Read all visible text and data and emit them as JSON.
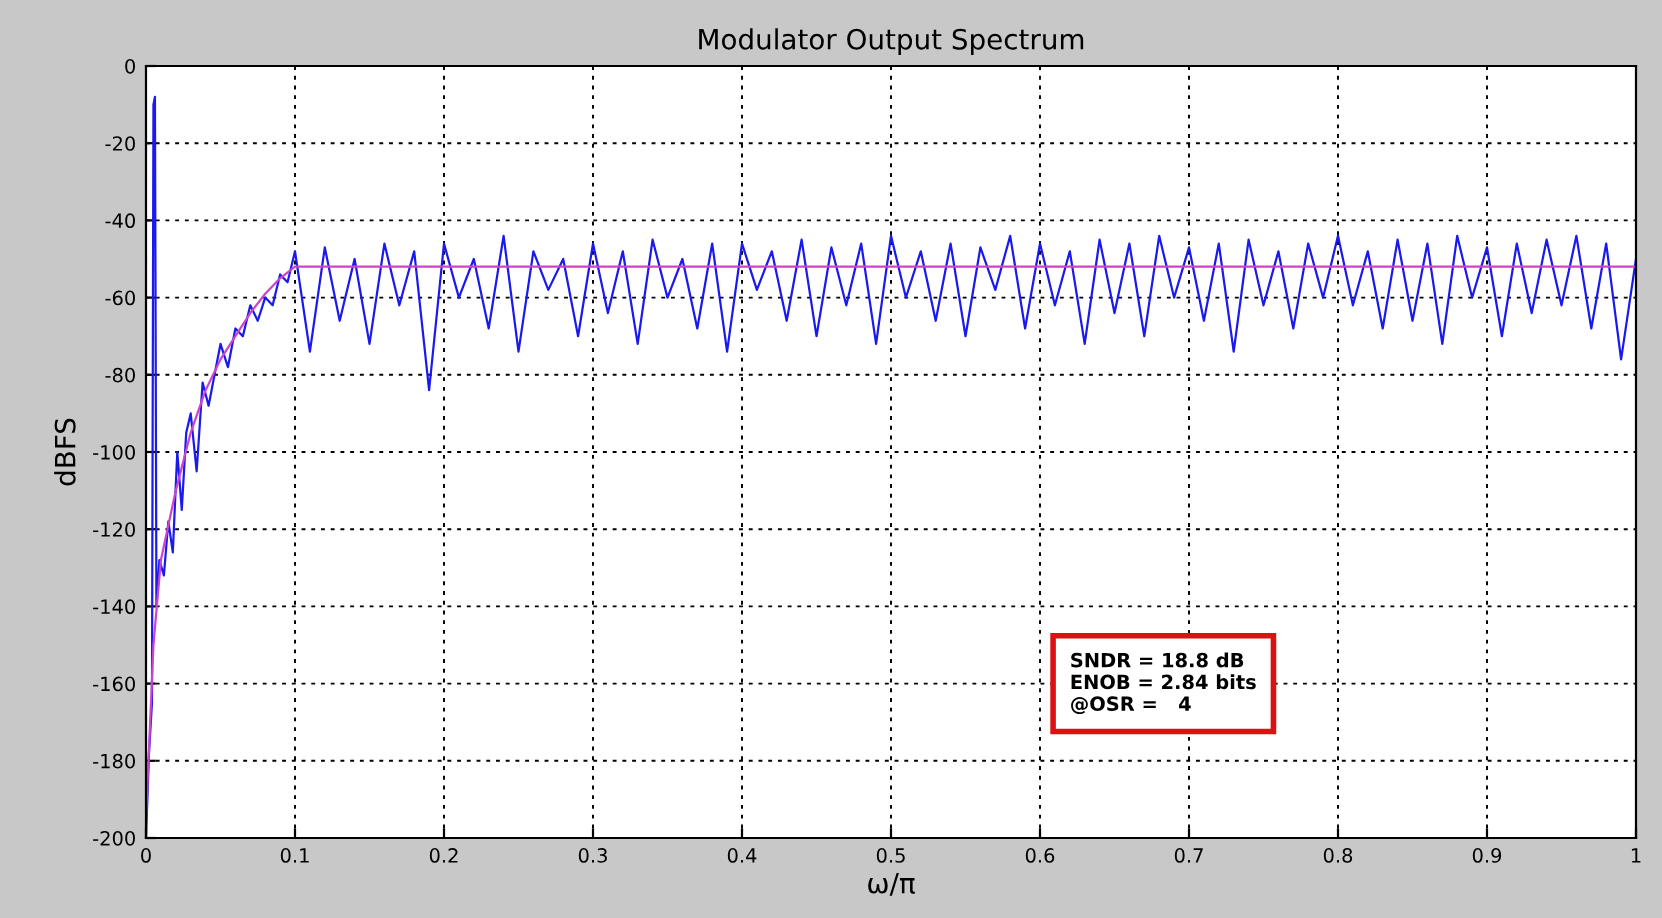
{
  "chart_data": {
    "type": "line",
    "title": "Modulator Output Spectrum",
    "xlabel": "ω/π",
    "ylabel": "dBFS",
    "series": [
      {
        "color": "#1a1aee",
        "x": [
          0,
          0.002,
          0.004,
          0.005,
          0.006,
          0.007,
          0.009,
          0.012,
          0.015,
          0.018,
          0.021,
          0.024,
          0.027,
          0.03,
          0.034,
          0.038,
          0.042,
          0.046,
          0.05,
          0.055,
          0.06,
          0.065,
          0.07,
          0.075,
          0.08,
          0.085,
          0.09,
          0.095,
          0.1,
          0.11,
          0.12,
          0.13,
          0.14,
          0.15,
          0.16,
          0.17,
          0.18,
          0.19,
          0.2,
          0.21,
          0.22,
          0.23,
          0.24,
          0.25,
          0.26,
          0.27,
          0.28,
          0.29,
          0.3,
          0.31,
          0.32,
          0.33,
          0.34,
          0.35,
          0.36,
          0.37,
          0.38,
          0.39,
          0.4,
          0.41,
          0.42,
          0.43,
          0.44,
          0.45,
          0.46,
          0.47,
          0.48,
          0.49,
          0.5,
          0.51,
          0.52,
          0.53,
          0.54,
          0.55,
          0.56,
          0.57,
          0.58,
          0.59,
          0.6,
          0.61,
          0.62,
          0.63,
          0.64,
          0.65,
          0.66,
          0.67,
          0.68,
          0.69,
          0.7,
          0.71,
          0.72,
          0.73,
          0.74,
          0.75,
          0.76,
          0.77,
          0.78,
          0.79,
          0.8,
          0.81,
          0.82,
          0.83,
          0.84,
          0.85,
          0.86,
          0.87,
          0.88,
          0.89,
          0.9,
          0.91,
          0.92,
          0.93,
          0.94,
          0.95,
          0.96,
          0.97,
          0.98,
          0.99,
          1
        ],
        "values": [
          -200,
          -178,
          -165,
          -10,
          -8,
          -140,
          -128,
          -132,
          -118,
          -126,
          -100,
          -115,
          -95,
          -90,
          -105,
          -82,
          -88,
          -80,
          -72,
          -78,
          -68,
          -70,
          -62,
          -66,
          -60,
          -62,
          -54,
          -56,
          -48,
          -74,
          -47,
          -66,
          -50,
          -72,
          -46,
          -62,
          -48,
          -84,
          -46,
          -60,
          -50,
          -68,
          -44,
          -74,
          -48,
          -58,
          -50,
          -70,
          -46,
          -64,
          -48,
          -72,
          -45,
          -60,
          -50,
          -68,
          -46,
          -74,
          -46,
          -58,
          -48,
          -66,
          -45,
          -70,
          -47,
          -62,
          -46,
          -72,
          -44,
          -60,
          -48,
          -66,
          -46,
          -70,
          -47,
          -58,
          -44,
          -68,
          -46,
          -62,
          -48,
          -72,
          -45,
          -64,
          -46,
          -70,
          -44,
          -60,
          -47,
          -66,
          -46,
          -74,
          -45,
          -62,
          -48,
          -68,
          -46,
          -60,
          -44,
          -62,
          -48,
          -68,
          -45,
          -66,
          -46,
          -72,
          -44,
          -60,
          -47,
          -70,
          -46,
          -64,
          -45,
          -62,
          -44,
          -68,
          -46,
          -76,
          -50
        ]
      },
      {
        "color": "#cc44cc",
        "x": [
          0,
          0.005,
          0.01,
          0.02,
          0.03,
          0.04,
          0.05,
          0.06,
          0.07,
          0.08,
          0.09,
          0.1,
          0.2,
          0.3,
          0.4,
          0.5,
          0.6,
          0.7,
          0.8,
          0.9,
          1
        ],
        "values": [
          -195,
          -150,
          -128,
          -110,
          -95,
          -84,
          -76,
          -70,
          -64,
          -59,
          -55,
          -52,
          -52,
          -52,
          -52,
          -52,
          -52,
          -52,
          -52,
          -52,
          -52
        ]
      }
    ],
    "xlim": [
      0,
      1
    ],
    "ylim": [
      -200,
      0
    ],
    "xticks": [
      0,
      0.1,
      0.2,
      0.3,
      0.4,
      0.5,
      0.6,
      0.7,
      0.8,
      0.9,
      1
    ],
    "yticks": [
      0,
      -20,
      -40,
      -60,
      -80,
      -100,
      -120,
      -140,
      -160,
      -180,
      -200
    ],
    "grid": true,
    "line_style": "solid",
    "marker": "none",
    "annotations": [
      "SNDR = 18.8 dB\nENOB = 2.84 bits\n@OSR =   4"
    ]
  }
}
